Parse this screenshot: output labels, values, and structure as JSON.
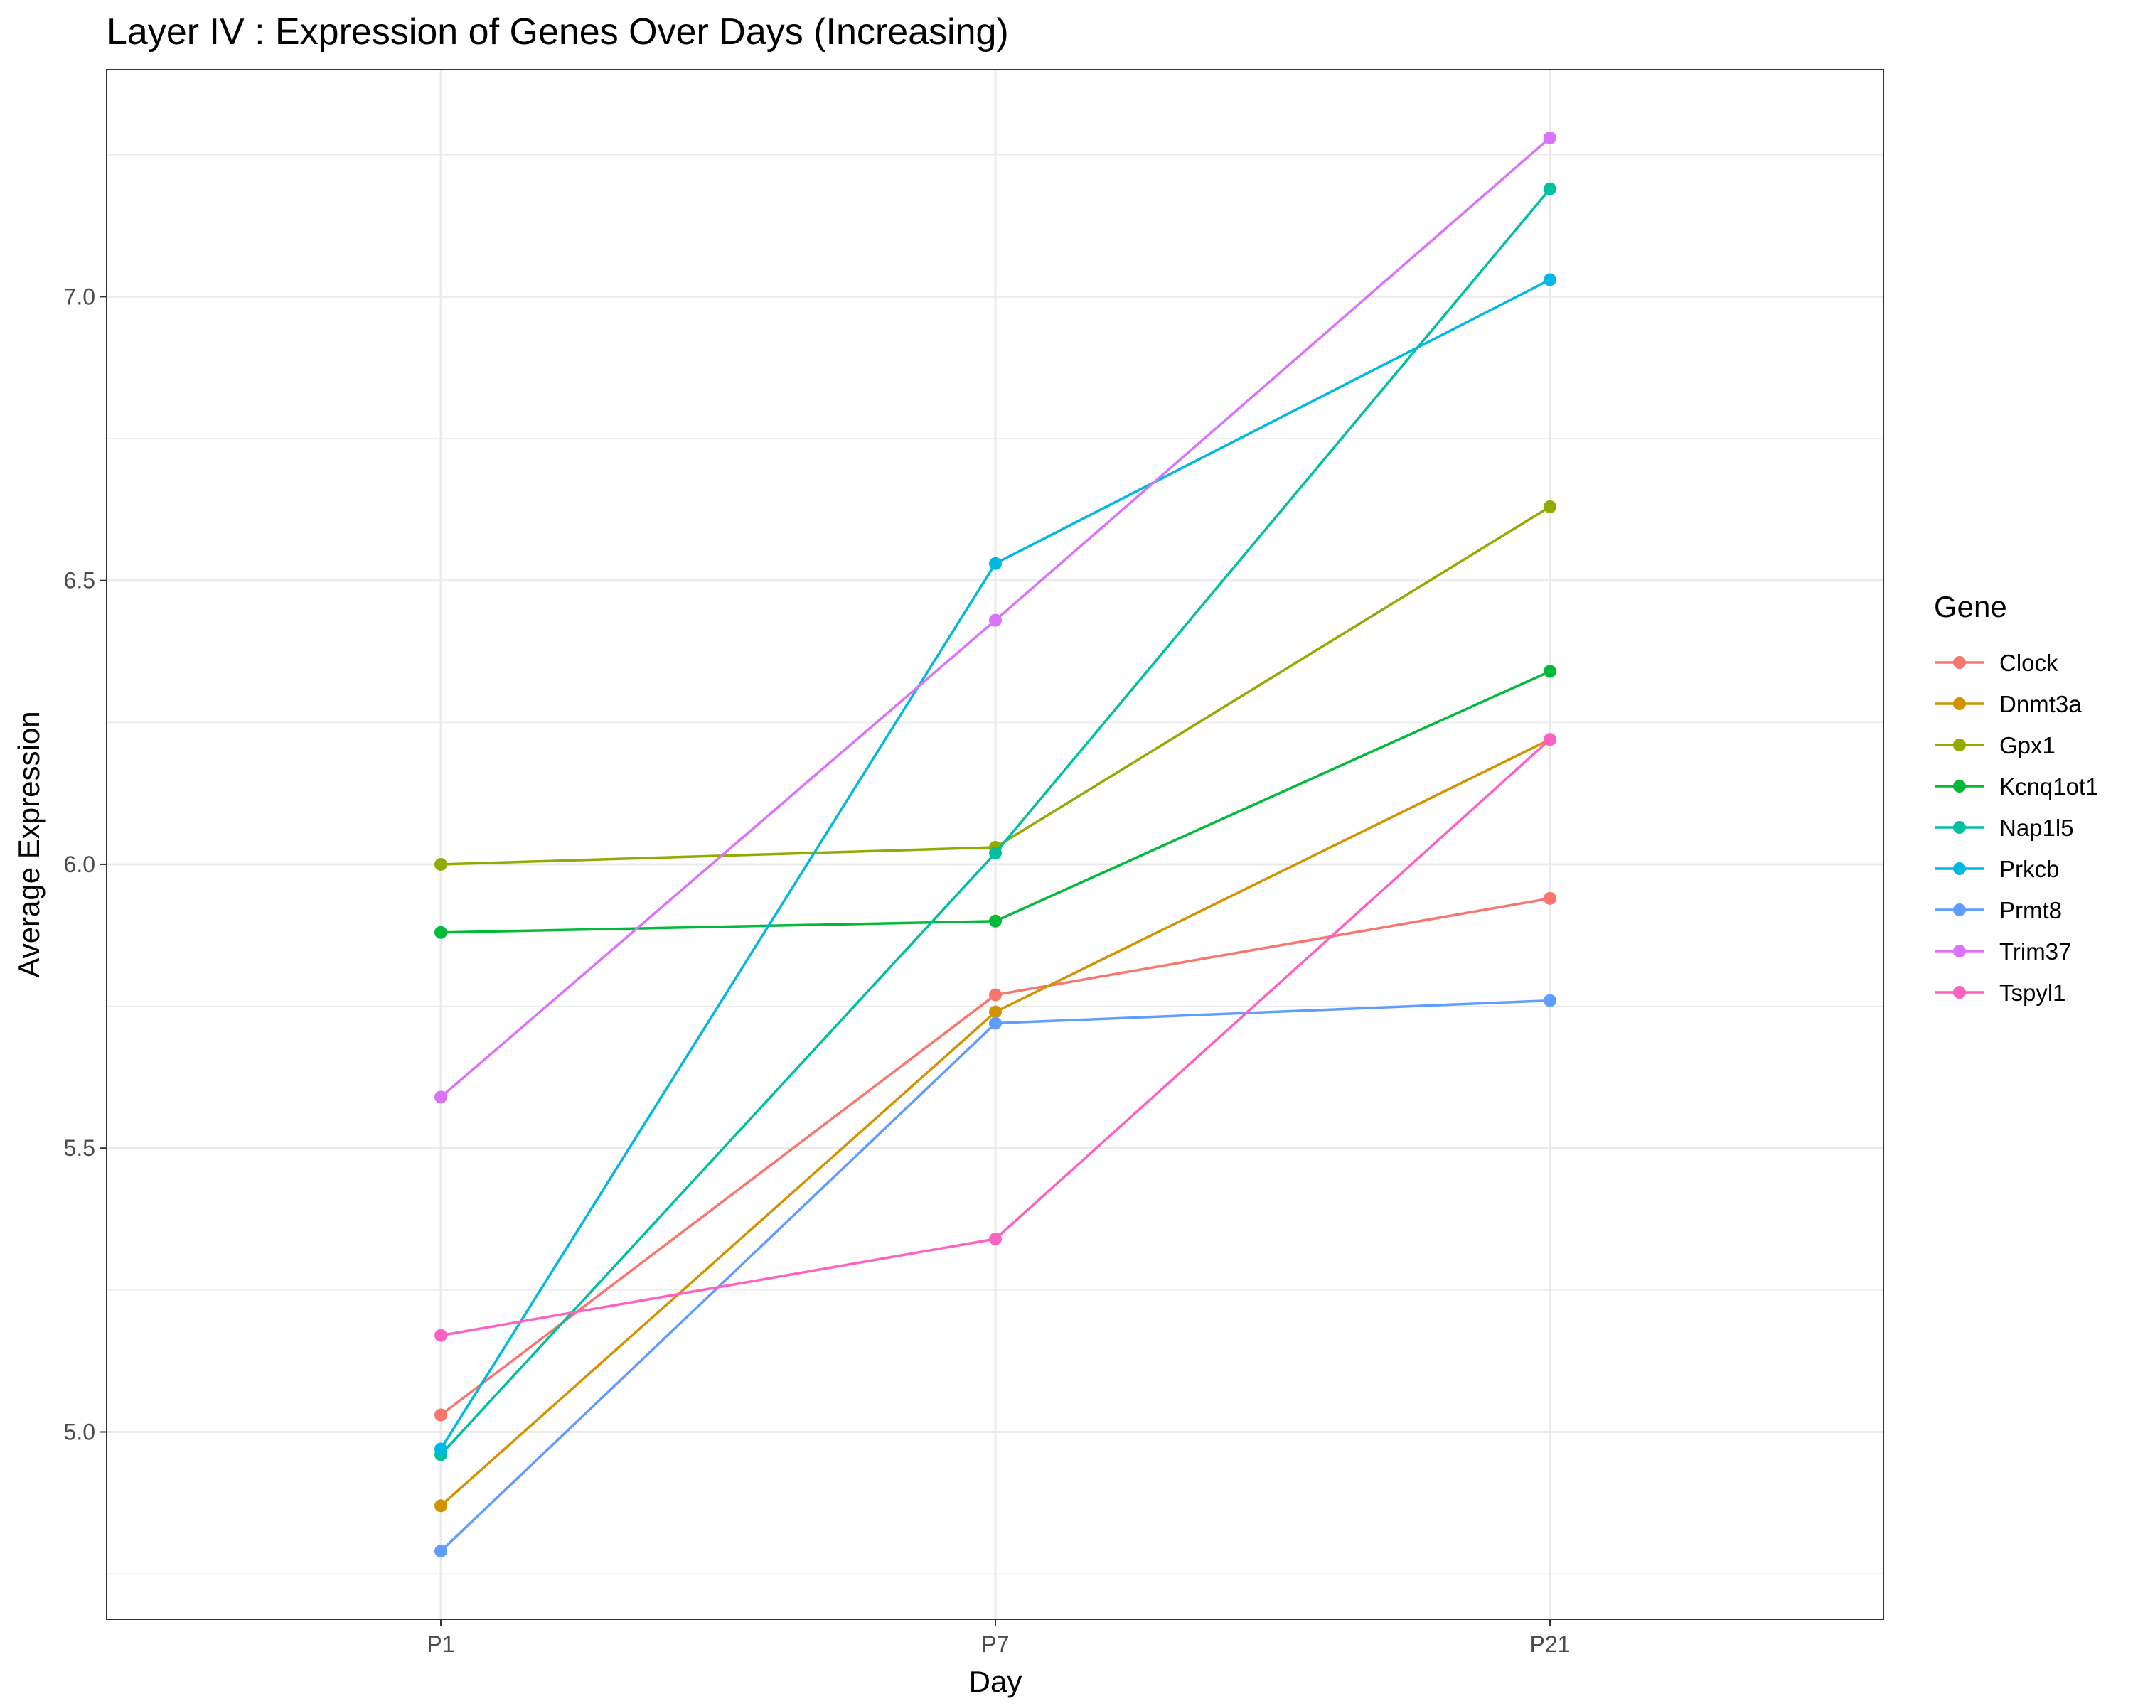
{
  "chart_data": {
    "type": "line",
    "title": "Layer IV : Expression of Genes Over Days (Increasing)",
    "xlabel": "Day",
    "ylabel": "Average Expression",
    "categories": [
      "P1",
      "P7",
      "P21"
    ],
    "ylim": [
      4.67,
      7.4
    ],
    "yticks": [
      5.0,
      5.5,
      6.0,
      6.5,
      7.0
    ],
    "ytick_labels": [
      "5.0",
      "5.5",
      "6.0",
      "6.5",
      "7.0"
    ],
    "grid": true,
    "legend_title": "Gene",
    "legend_position": "right",
    "series": [
      {
        "name": "Clock",
        "color": "#F8766D",
        "values": [
          5.03,
          5.77,
          5.94
        ]
      },
      {
        "name": "Dnmt3a",
        "color": "#D39200",
        "values": [
          4.87,
          5.74,
          6.22
        ]
      },
      {
        "name": "Gpx1",
        "color": "#93AA00",
        "values": [
          6.0,
          6.03,
          6.63
        ]
      },
      {
        "name": "Kcnq1ot1",
        "color": "#00BA38",
        "values": [
          5.88,
          5.9,
          6.34
        ]
      },
      {
        "name": "Nap1l5",
        "color": "#00C19F",
        "values": [
          4.96,
          6.02,
          7.19
        ]
      },
      {
        "name": "Prkcb",
        "color": "#00B9E3",
        "values": [
          4.97,
          6.53,
          7.03
        ]
      },
      {
        "name": "Prmt8",
        "color": "#619CFF",
        "values": [
          4.79,
          5.72,
          5.76
        ]
      },
      {
        "name": "Trim37",
        "color": "#DB72FB",
        "values": [
          5.59,
          6.43,
          7.28
        ]
      },
      {
        "name": "Tspyl1",
        "color": "#FF61C3",
        "values": [
          5.17,
          5.34,
          6.22
        ]
      }
    ]
  }
}
